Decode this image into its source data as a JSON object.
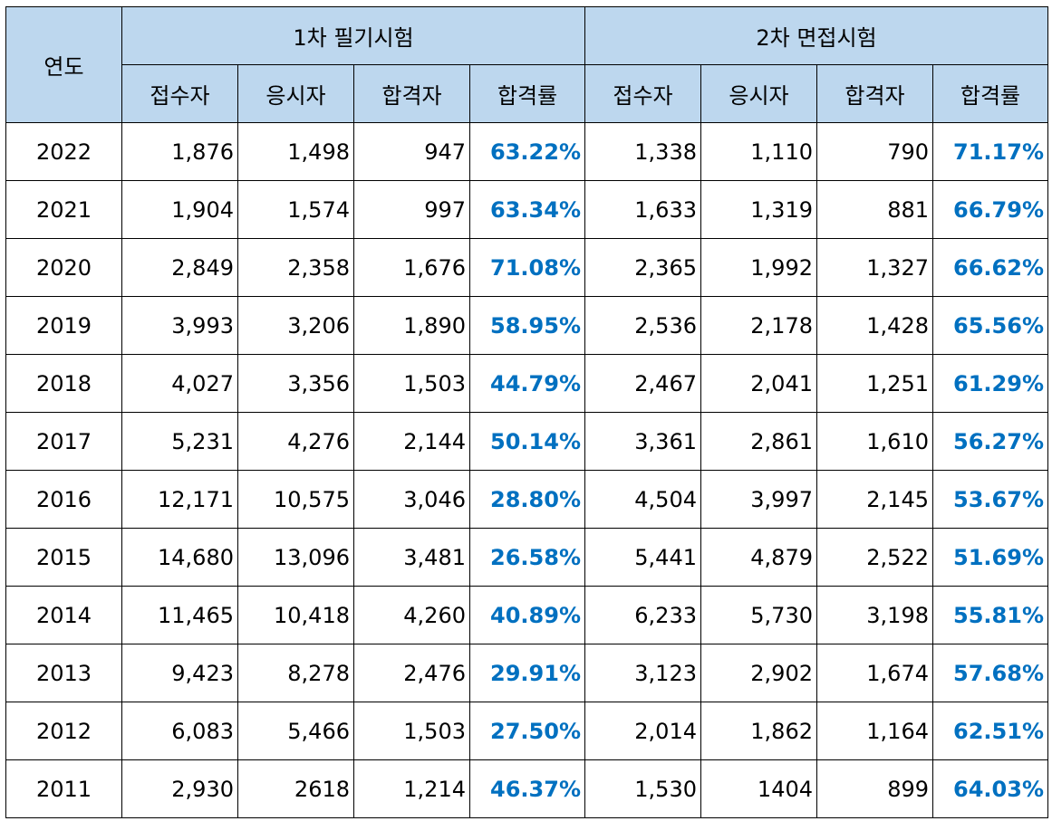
{
  "colors": {
    "header_bg": "#bdd7ee",
    "rate_text": "#0070c0",
    "border": "#000000"
  },
  "header": {
    "year": "연도",
    "first_exam": "1차 필기시험",
    "second_exam": "2차 면접시험",
    "sub": [
      "접수자",
      "응시자",
      "합격자",
      "합격률",
      "접수자",
      "응시자",
      "합격자",
      "합격률"
    ]
  },
  "rows": [
    {
      "year": "2022",
      "first": [
        "1,876",
        "1,498",
        "947",
        "63.22%"
      ],
      "second": [
        "1,338",
        "1,110",
        "790",
        "71.17%"
      ]
    },
    {
      "year": "2021",
      "first": [
        "1,904",
        "1,574",
        "997",
        "63.34%"
      ],
      "second": [
        "1,633",
        "1,319",
        "881",
        "66.79%"
      ]
    },
    {
      "year": "2020",
      "first": [
        "2,849",
        "2,358",
        "1,676",
        "71.08%"
      ],
      "second": [
        "2,365",
        "1,992",
        "1,327",
        "66.62%"
      ]
    },
    {
      "year": "2019",
      "first": [
        "3,993",
        "3,206",
        "1,890",
        "58.95%"
      ],
      "second": [
        "2,536",
        "2,178",
        "1,428",
        "65.56%"
      ]
    },
    {
      "year": "2018",
      "first": [
        "4,027",
        "3,356",
        "1,503",
        "44.79%"
      ],
      "second": [
        "2,467",
        "2,041",
        "1,251",
        "61.29%"
      ]
    },
    {
      "year": "2017",
      "first": [
        "5,231",
        "4,276",
        "2,144",
        "50.14%"
      ],
      "second": [
        "3,361",
        "2,861",
        "1,610",
        "56.27%"
      ]
    },
    {
      "year": "2016",
      "first": [
        "12,171",
        "10,575",
        "3,046",
        "28.80%"
      ],
      "second": [
        "4,504",
        "3,997",
        "2,145",
        "53.67%"
      ]
    },
    {
      "year": "2015",
      "first": [
        "14,680",
        "13,096",
        "3,481",
        "26.58%"
      ],
      "second": [
        "5,441",
        "4,879",
        "2,522",
        "51.69%"
      ]
    },
    {
      "year": "2014",
      "first": [
        "11,465",
        "10,418",
        "4,260",
        "40.89%"
      ],
      "second": [
        "6,233",
        "5,730",
        "3,198",
        "55.81%"
      ]
    },
    {
      "year": "2013",
      "first": [
        "9,423",
        "8,278",
        "2,476",
        "29.91%"
      ],
      "second": [
        "3,123",
        "2,902",
        "1,674",
        "57.68%"
      ]
    },
    {
      "year": "2012",
      "first": [
        "6,083",
        "5,466",
        "1,503",
        "27.50%"
      ],
      "second": [
        "2,014",
        "1,862",
        "1,164",
        "62.51%"
      ]
    },
    {
      "year": "2011",
      "first": [
        "2,930",
        "2618",
        "1,214",
        "46.37%"
      ],
      "second": [
        "1,530",
        "1404",
        "899",
        "64.03%"
      ]
    }
  ]
}
